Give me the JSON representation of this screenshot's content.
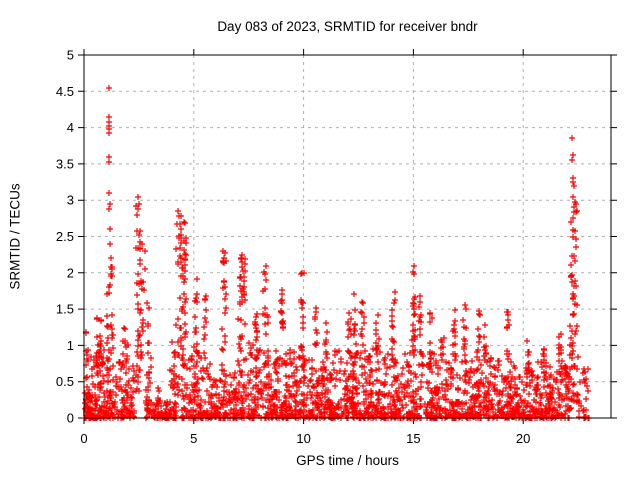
{
  "chart_data": {
    "type": "scatter",
    "title": "Day 083 of 2023, SRMTID for receiver bndr",
    "xlabel": "GPS time / hours",
    "ylabel": "SRMTID / TECUs",
    "xlim": [
      0,
      24
    ],
    "ylim": [
      0,
      5
    ],
    "xticks": [
      0,
      5,
      10,
      15,
      20
    ],
    "xtick_labels": [
      "0",
      "5",
      "10",
      "15",
      "20"
    ],
    "yticks": [
      0,
      0.5,
      1,
      1.5,
      2,
      2.5,
      3,
      3.5,
      4,
      4.5,
      5
    ],
    "ytick_labels": [
      "0",
      "0.5",
      "1",
      "1.5",
      "2",
      "2.5",
      "3",
      "3.5",
      "4",
      "4.5",
      "5"
    ],
    "grid": true,
    "legend_position": "none",
    "marker": "plus",
    "marker_size": 7,
    "colors": {
      "marker": "#ff0000",
      "grid": "#b0b0b0",
      "axis": "#000000",
      "background": "#ffffff",
      "text": "#000000"
    },
    "series_name": "SRMTID",
    "scatter_model": {
      "comment_free": "dense 30s-epoch scatter encoded as density clusters [t0,t1,ymin,ymax,n,shape(b=bottom-weighted,c=column)] plus explicit peak points [hour,TECU]",
      "clusters": [
        [
          0.02,
          0.3,
          0.0,
          0.45,
          45,
          "b"
        ],
        [
          0.05,
          0.2,
          0.45,
          1.2,
          10,
          "c"
        ],
        [
          0.3,
          0.95,
          0.0,
          0.95,
          95,
          "b"
        ],
        [
          0.55,
          0.8,
          0.6,
          1.4,
          22,
          "c"
        ],
        [
          0.98,
          1.35,
          0.0,
          1.45,
          60,
          "b"
        ],
        [
          1.05,
          1.3,
          1.45,
          2.1,
          10,
          "c"
        ],
        [
          1.4,
          2.3,
          0.0,
          0.8,
          85,
          "b"
        ],
        [
          1.75,
          2.0,
          0.7,
          1.35,
          12,
          "c"
        ],
        [
          2.35,
          2.6,
          0.3,
          3.05,
          40,
          "c"
        ],
        [
          2.6,
          2.8,
          0.8,
          2.45,
          14,
          "c"
        ],
        [
          2.8,
          3.05,
          0.0,
          1.0,
          28,
          "b"
        ],
        [
          2.88,
          2.98,
          1.0,
          1.75,
          6,
          "c"
        ],
        [
          3.05,
          3.9,
          0.0,
          0.22,
          70,
          "b"
        ],
        [
          3.3,
          3.6,
          0.22,
          0.5,
          6,
          "b"
        ],
        [
          3.92,
          4.2,
          0.0,
          1.1,
          40,
          "b"
        ],
        [
          4.2,
          4.48,
          0.3,
          2.86,
          38,
          "c"
        ],
        [
          4.48,
          4.68,
          1.3,
          2.72,
          20,
          "c"
        ],
        [
          4.45,
          4.8,
          0.0,
          1.3,
          40,
          "b"
        ],
        [
          4.8,
          5.3,
          0.0,
          0.95,
          55,
          "b"
        ],
        [
          5.02,
          5.18,
          0.9,
          2.0,
          13,
          "c"
        ],
        [
          5.3,
          5.8,
          0.0,
          0.85,
          45,
          "b"
        ],
        [
          5.45,
          5.58,
          0.8,
          1.7,
          10,
          "c"
        ],
        [
          5.8,
          6.25,
          0.0,
          0.6,
          45,
          "b"
        ],
        [
          6.28,
          6.5,
          0.2,
          2.3,
          24,
          "c"
        ],
        [
          6.3,
          6.6,
          0.0,
          0.7,
          25,
          "b"
        ],
        [
          6.6,
          7.0,
          0.0,
          0.65,
          42,
          "b"
        ],
        [
          7.02,
          7.4,
          0.0,
          1.4,
          48,
          "b"
        ],
        [
          7.08,
          7.35,
          1.55,
          2.26,
          26,
          "c"
        ],
        [
          7.45,
          8.1,
          0.0,
          1.05,
          75,
          "b"
        ],
        [
          7.75,
          7.9,
          0.9,
          1.45,
          10,
          "c"
        ],
        [
          8.15,
          8.45,
          0.4,
          2.1,
          22,
          "c"
        ],
        [
          8.15,
          8.55,
          0.0,
          0.8,
          35,
          "b"
        ],
        [
          8.55,
          9.3,
          0.0,
          0.95,
          85,
          "b"
        ],
        [
          8.92,
          9.1,
          1.2,
          1.8,
          14,
          "c"
        ],
        [
          9.3,
          10.15,
          0.0,
          0.95,
          95,
          "b"
        ],
        [
          9.85,
          10.0,
          0.9,
          2.0,
          14,
          "c"
        ],
        [
          10.2,
          11.2,
          0.0,
          0.9,
          110,
          "b"
        ],
        [
          10.5,
          10.62,
          0.8,
          1.6,
          10,
          "c"
        ],
        [
          10.95,
          11.08,
          0.8,
          1.5,
          8,
          "c"
        ],
        [
          11.2,
          12.4,
          0.0,
          0.95,
          130,
          "b"
        ],
        [
          12.0,
          12.15,
          0.9,
          1.65,
          10,
          "c"
        ],
        [
          12.28,
          12.4,
          1.0,
          1.9,
          8,
          "c"
        ],
        [
          12.4,
          13.6,
          0.0,
          0.95,
          130,
          "b"
        ],
        [
          12.62,
          12.75,
          0.9,
          1.88,
          10,
          "c"
        ],
        [
          13.28,
          13.42,
          0.8,
          1.5,
          9,
          "c"
        ],
        [
          13.6,
          14.85,
          0.0,
          0.9,
          130,
          "b"
        ],
        [
          14.02,
          14.18,
          0.8,
          1.75,
          13,
          "c"
        ],
        [
          14.85,
          15.45,
          0.0,
          1.0,
          60,
          "b"
        ],
        [
          14.95,
          15.12,
          0.9,
          2.1,
          20,
          "c"
        ],
        [
          15.25,
          15.38,
          0.9,
          1.85,
          10,
          "c"
        ],
        [
          15.5,
          16.5,
          0.0,
          0.9,
          105,
          "b"
        ],
        [
          15.75,
          15.88,
          0.8,
          1.45,
          9,
          "c"
        ],
        [
          16.25,
          16.38,
          0.7,
          1.2,
          8,
          "c"
        ],
        [
          16.5,
          17.6,
          0.0,
          0.9,
          115,
          "b"
        ],
        [
          16.8,
          16.92,
          0.8,
          1.55,
          10,
          "c"
        ],
        [
          17.25,
          17.4,
          0.8,
          1.65,
          12,
          "c"
        ],
        [
          17.6,
          18.8,
          0.0,
          0.85,
          125,
          "b"
        ],
        [
          17.9,
          18.02,
          0.8,
          1.5,
          10,
          "c"
        ],
        [
          18.2,
          18.32,
          0.8,
          1.35,
          8,
          "c"
        ],
        [
          18.8,
          19.8,
          0.0,
          0.8,
          105,
          "b"
        ],
        [
          19.25,
          19.38,
          0.7,
          1.48,
          11,
          "c"
        ],
        [
          19.8,
          21.2,
          0.0,
          0.78,
          140,
          "b"
        ],
        [
          20.15,
          20.28,
          0.6,
          1.12,
          9,
          "c"
        ],
        [
          20.85,
          20.98,
          0.6,
          1.02,
          8,
          "c"
        ],
        [
          21.2,
          22.1,
          0.0,
          0.8,
          95,
          "b"
        ],
        [
          21.62,
          21.75,
          0.7,
          1.2,
          9,
          "c"
        ],
        [
          22.1,
          22.5,
          0.1,
          1.6,
          40,
          "c"
        ],
        [
          22.15,
          22.45,
          1.6,
          3.1,
          26,
          "c"
        ],
        [
          22.5,
          23.0,
          0.0,
          0.7,
          28,
          "b"
        ]
      ],
      "peaks": [
        [
          1.12,
          4.55
        ],
        [
          1.13,
          4.15
        ],
        [
          1.14,
          4.08
        ],
        [
          1.12,
          4.02
        ],
        [
          1.15,
          3.98
        ],
        [
          1.13,
          3.93
        ],
        [
          1.16,
          3.6
        ],
        [
          1.14,
          3.52
        ],
        [
          1.12,
          3.1
        ],
        [
          1.18,
          2.95
        ],
        [
          1.15,
          2.88
        ],
        [
          1.2,
          2.6
        ],
        [
          1.17,
          2.4
        ],
        [
          1.22,
          2.2
        ],
        [
          2.47,
          3.05
        ],
        [
          2.49,
          2.95
        ],
        [
          2.45,
          2.88
        ],
        [
          4.3,
          2.85
        ],
        [
          4.33,
          2.78
        ],
        [
          4.55,
          2.7
        ],
        [
          6.35,
          2.3
        ],
        [
          7.2,
          2.25
        ],
        [
          8.3,
          2.1
        ],
        [
          9.92,
          2.0
        ],
        [
          15.02,
          2.1
        ],
        [
          22.22,
          3.85
        ],
        [
          22.25,
          3.62
        ],
        [
          22.24,
          3.55
        ],
        [
          22.28,
          3.3
        ],
        [
          22.26,
          3.25
        ],
        [
          22.3,
          3.2
        ],
        [
          22.27,
          3.05
        ],
        [
          22.32,
          2.9
        ],
        [
          22.29,
          2.75
        ],
        [
          22.35,
          2.58
        ]
      ]
    }
  }
}
